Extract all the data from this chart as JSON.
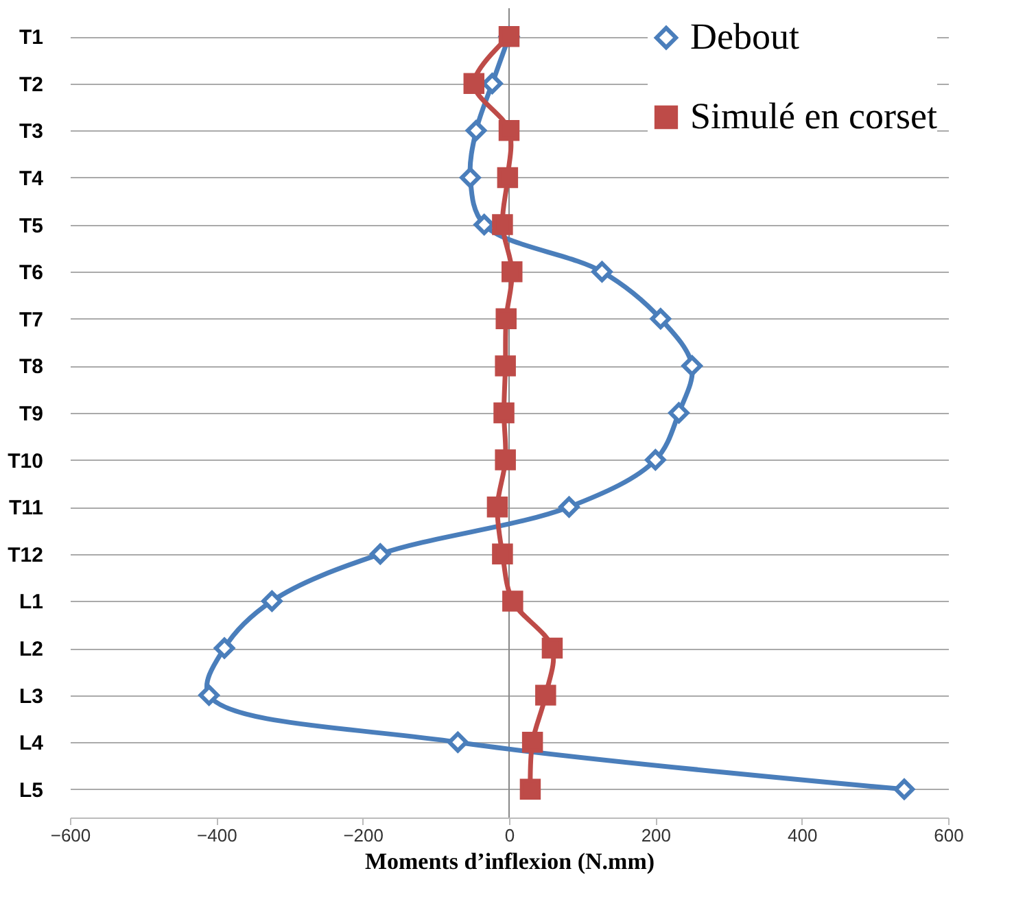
{
  "chart_data": {
    "type": "line",
    "orientation": "horizontal",
    "xlabel": "Moments d’inflexion (N.mm)",
    "categories": [
      "T1",
      "T2",
      "T3",
      "T4",
      "T5",
      "T6",
      "T7",
      "T8",
      "T9",
      "T10",
      "T11",
      "T12",
      "L1",
      "L2",
      "L3",
      "L4",
      "L5"
    ],
    "series": [
      {
        "name": "Debout",
        "color": "#4a7ebb",
        "marker": "diamond",
        "values": [
          0,
          -23,
          -45,
          -53,
          -34,
          127,
          207,
          250,
          232,
          200,
          82,
          -176,
          -324,
          -389,
          -410,
          -70,
          540
        ]
      },
      {
        "name": "Simulé en corset",
        "color": "#be4b48",
        "marker": "square",
        "values": [
          0,
          -48,
          0,
          -2,
          -9,
          4,
          -4,
          -5,
          -7,
          -5,
          -16,
          -9,
          5,
          59,
          50,
          32,
          29
        ]
      }
    ],
    "xlim": [
      -600,
      600
    ],
    "xticks": [
      -600,
      -400,
      -200,
      0,
      200,
      400,
      600
    ],
    "ref_lines": [
      {
        "axis": "x",
        "value": 0
      }
    ],
    "grid": "y",
    "legend": "top right"
  }
}
